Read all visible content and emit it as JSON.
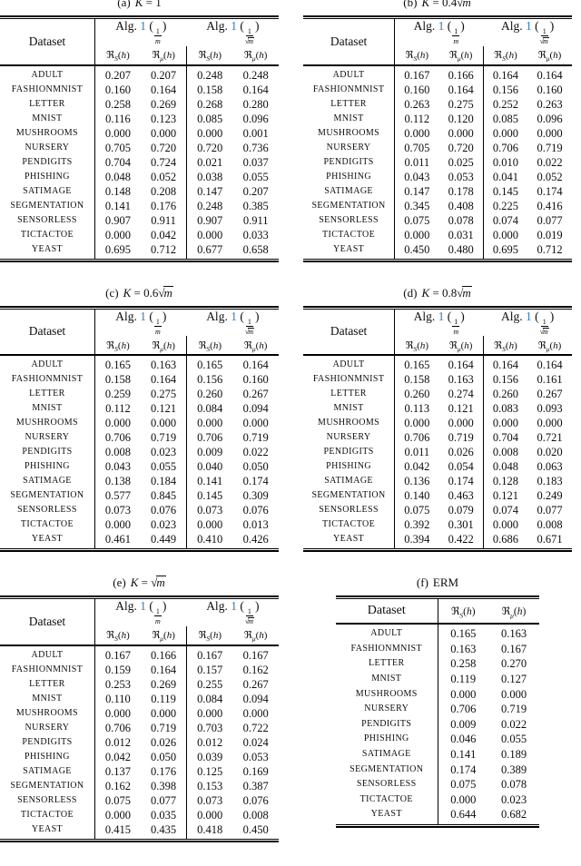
{
  "page": {
    "background": "#ffffff",
    "text_color": "#0d0d0d",
    "rule_color": "#000000",
    "link_color": "#2e7fc1"
  },
  "header_labels": {
    "dataset": "Dataset",
    "alg": "Alg.",
    "ref": "1",
    "paren_open": "(",
    "paren_close": ")",
    "frac_num": "1",
    "frac_den": "m",
    "radical": "√",
    "risk_base": "ℜ",
    "sub_s": "S",
    "sub_mu": "μ",
    "arg_open": "(",
    "arg_h": "h",
    "arg_close": ")"
  },
  "datasets": [
    "ADULT",
    "FASHIONMNIST",
    "LETTER",
    "MNIST",
    "MUSHROOMS",
    "NURSERY",
    "PENDIGITS",
    "PHISHING",
    "SATIMAGE",
    "SEGMENTATION",
    "SENSORLESS",
    "TICTACTOE",
    "YEAST"
  ],
  "tables": [
    {
      "id": "a",
      "type": "alg2",
      "caption_label": "(a)",
      "caption": [
        {
          "t": "K",
          "i": true
        },
        {
          "t": " = 1"
        }
      ],
      "rows": [
        [
          "0.207",
          "0.207",
          "0.248",
          "0.248"
        ],
        [
          "0.160",
          "0.164",
          "0.158",
          "0.164"
        ],
        [
          "0.258",
          "0.269",
          "0.268",
          "0.280"
        ],
        [
          "0.116",
          "0.123",
          "0.085",
          "0.096"
        ],
        [
          "0.000",
          "0.000",
          "0.000",
          "0.001"
        ],
        [
          "0.705",
          "0.720",
          "0.720",
          "0.736"
        ],
        [
          "0.704",
          "0.724",
          "0.021",
          "0.037"
        ],
        [
          "0.048",
          "0.052",
          "0.038",
          "0.055"
        ],
        [
          "0.148",
          "0.208",
          "0.147",
          "0.207"
        ],
        [
          "0.141",
          "0.176",
          "0.248",
          "0.385"
        ],
        [
          "0.907",
          "0.911",
          "0.907",
          "0.911"
        ],
        [
          "0.000",
          "0.042",
          "0.000",
          "0.033"
        ],
        [
          "0.695",
          "0.712",
          "0.677",
          "0.658"
        ]
      ]
    },
    {
      "id": "b",
      "type": "alg2",
      "caption_label": "(b)",
      "caption": [
        {
          "t": "K",
          "i": true
        },
        {
          "t": " = 0.4"
        },
        {
          "t": "m",
          "i": true,
          "sqrt": true
        }
      ],
      "rows": [
        [
          "0.167",
          "0.166",
          "0.164",
          "0.164"
        ],
        [
          "0.160",
          "0.164",
          "0.156",
          "0.160"
        ],
        [
          "0.263",
          "0.275",
          "0.252",
          "0.263"
        ],
        [
          "0.112",
          "0.120",
          "0.085",
          "0.096"
        ],
        [
          "0.000",
          "0.000",
          "0.000",
          "0.000"
        ],
        [
          "0.705",
          "0.720",
          "0.706",
          "0.719"
        ],
        [
          "0.011",
          "0.025",
          "0.010",
          "0.022"
        ],
        [
          "0.043",
          "0.053",
          "0.041",
          "0.052"
        ],
        [
          "0.147",
          "0.178",
          "0.145",
          "0.174"
        ],
        [
          "0.345",
          "0.408",
          "0.225",
          "0.416"
        ],
        [
          "0.075",
          "0.078",
          "0.074",
          "0.077"
        ],
        [
          "0.000",
          "0.031",
          "0.000",
          "0.019"
        ],
        [
          "0.450",
          "0.480",
          "0.695",
          "0.712"
        ]
      ]
    },
    {
      "id": "c",
      "type": "alg2",
      "caption_label": "(c)",
      "caption": [
        {
          "t": "K",
          "i": true
        },
        {
          "t": " = 0.6"
        },
        {
          "t": "m",
          "i": true,
          "sqrt": true
        }
      ],
      "rows": [
        [
          "0.165",
          "0.163",
          "0.165",
          "0.164"
        ],
        [
          "0.158",
          "0.164",
          "0.156",
          "0.160"
        ],
        [
          "0.259",
          "0.275",
          "0.260",
          "0.267"
        ],
        [
          "0.112",
          "0.121",
          "0.084",
          "0.094"
        ],
        [
          "0.000",
          "0.000",
          "0.000",
          "0.000"
        ],
        [
          "0.706",
          "0.719",
          "0.706",
          "0.719"
        ],
        [
          "0.008",
          "0.023",
          "0.009",
          "0.022"
        ],
        [
          "0.043",
          "0.055",
          "0.040",
          "0.050"
        ],
        [
          "0.138",
          "0.184",
          "0.141",
          "0.174"
        ],
        [
          "0.577",
          "0.845",
          "0.145",
          "0.309"
        ],
        [
          "0.073",
          "0.076",
          "0.073",
          "0.076"
        ],
        [
          "0.000",
          "0.023",
          "0.000",
          "0.013"
        ],
        [
          "0.461",
          "0.449",
          "0.410",
          "0.426"
        ]
      ]
    },
    {
      "id": "d",
      "type": "alg2",
      "caption_label": "(d)",
      "caption": [
        {
          "t": "K",
          "i": true
        },
        {
          "t": " = 0.8"
        },
        {
          "t": "m",
          "i": true,
          "sqrt": true
        }
      ],
      "rows": [
        [
          "0.165",
          "0.164",
          "0.164",
          "0.164"
        ],
        [
          "0.158",
          "0.163",
          "0.156",
          "0.161"
        ],
        [
          "0.260",
          "0.274",
          "0.260",
          "0.267"
        ],
        [
          "0.113",
          "0.121",
          "0.083",
          "0.093"
        ],
        [
          "0.000",
          "0.000",
          "0.000",
          "0.000"
        ],
        [
          "0.706",
          "0.719",
          "0.704",
          "0.721"
        ],
        [
          "0.011",
          "0.026",
          "0.008",
          "0.020"
        ],
        [
          "0.042",
          "0.054",
          "0.048",
          "0.063"
        ],
        [
          "0.136",
          "0.174",
          "0.128",
          "0.183"
        ],
        [
          "0.140",
          "0.463",
          "0.121",
          "0.249"
        ],
        [
          "0.075",
          "0.079",
          "0.074",
          "0.077"
        ],
        [
          "0.392",
          "0.301",
          "0.000",
          "0.008"
        ],
        [
          "0.394",
          "0.422",
          "0.686",
          "0.671"
        ]
      ]
    },
    {
      "id": "e",
      "type": "alg2",
      "caption_label": "(e)",
      "caption": [
        {
          "t": "K",
          "i": true
        },
        {
          "t": " = "
        },
        {
          "t": "m",
          "i": true,
          "sqrt": true
        }
      ],
      "rows": [
        [
          "0.167",
          "0.166",
          "0.167",
          "0.167"
        ],
        [
          "0.159",
          "0.164",
          "0.157",
          "0.162"
        ],
        [
          "0.253",
          "0.269",
          "0.255",
          "0.267"
        ],
        [
          "0.110",
          "0.119",
          "0.084",
          "0.094"
        ],
        [
          "0.000",
          "0.000",
          "0.000",
          "0.000"
        ],
        [
          "0.706",
          "0.719",
          "0.703",
          "0.722"
        ],
        [
          "0.012",
          "0.026",
          "0.012",
          "0.024"
        ],
        [
          "0.042",
          "0.050",
          "0.039",
          "0.053"
        ],
        [
          "0.137",
          "0.176",
          "0.125",
          "0.169"
        ],
        [
          "0.162",
          "0.398",
          "0.153",
          "0.387"
        ],
        [
          "0.075",
          "0.077",
          "0.073",
          "0.076"
        ],
        [
          "0.000",
          "0.035",
          "0.000",
          "0.008"
        ],
        [
          "0.415",
          "0.435",
          "0.418",
          "0.450"
        ]
      ]
    },
    {
      "id": "f",
      "type": "erm",
      "caption_label": "(f)",
      "caption": [
        {
          "t": "ERM"
        }
      ],
      "rows": [
        [
          "0.165",
          "0.163"
        ],
        [
          "0.163",
          "0.167"
        ],
        [
          "0.258",
          "0.270"
        ],
        [
          "0.119",
          "0.127"
        ],
        [
          "0.000",
          "0.000"
        ],
        [
          "0.706",
          "0.719"
        ],
        [
          "0.009",
          "0.022"
        ],
        [
          "0.046",
          "0.055"
        ],
        [
          "0.141",
          "0.189"
        ],
        [
          "0.174",
          "0.389"
        ],
        [
          "0.075",
          "0.078"
        ],
        [
          "0.000",
          "0.023"
        ],
        [
          "0.644",
          "0.682"
        ]
      ]
    }
  ]
}
